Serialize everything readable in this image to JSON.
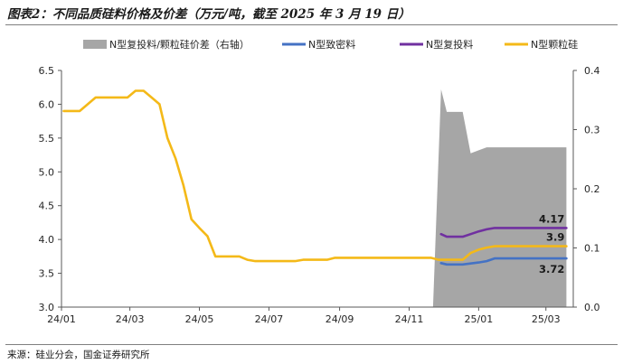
{
  "figure": {
    "title": "图表2：不同品质硅料价格及价差（万元/吨，截至 2025 年 3 月 19 日）",
    "source": "来源：硅业分会，国金证券研究所"
  },
  "chart_data": {
    "type": "line",
    "x_ticks": [
      "24/01",
      "24/03",
      "24/05",
      "24/07",
      "24/09",
      "24/11",
      "25/01",
      "25/03"
    ],
    "y_left": {
      "range": [
        3.0,
        6.5
      ],
      "ticks": [
        "3.0",
        "3.5",
        "4.0",
        "4.5",
        "5.0",
        "5.5",
        "6.0",
        "6.5"
      ]
    },
    "y_right": {
      "range": [
        0.0,
        0.4
      ],
      "ticks": [
        "0.0",
        "0.1",
        "0.2",
        "0.3",
        "0.4"
      ]
    },
    "legend_position": "top",
    "grid": false,
    "series": [
      {
        "name": "N型复投料/颗粒硅价差（右轴）",
        "type": "area",
        "axis": "right",
        "color": "#a6a6a6",
        "points": [
          [
            "2024-11-22",
            0.0
          ],
          [
            "2024-11-29",
            0.368
          ],
          [
            "2024-12-04",
            0.33
          ],
          [
            "2024-12-11",
            0.33
          ],
          [
            "2024-12-18",
            0.33
          ],
          [
            "2024-12-25",
            0.26
          ],
          [
            "2025-01-01",
            0.265
          ],
          [
            "2025-01-08",
            0.27
          ],
          [
            "2025-01-15",
            0.27
          ],
          [
            "2025-02-05",
            0.27
          ],
          [
            "2025-02-26",
            0.27
          ],
          [
            "2025-03-19",
            0.27
          ]
        ]
      },
      {
        "name": "N型致密料",
        "type": "line",
        "axis": "left",
        "color": "#4472c4",
        "points": [
          [
            "2024-11-29",
            3.65
          ],
          [
            "2024-12-04",
            3.63
          ],
          [
            "2024-12-18",
            3.63
          ],
          [
            "2025-01-01",
            3.66
          ],
          [
            "2025-01-08",
            3.68
          ],
          [
            "2025-01-15",
            3.72
          ],
          [
            "2025-02-05",
            3.72
          ],
          [
            "2025-02-26",
            3.72
          ],
          [
            "2025-03-19",
            3.72
          ]
        ],
        "end_label": "3.72"
      },
      {
        "name": "N型复投料",
        "type": "line",
        "axis": "left",
        "color": "#7030a0",
        "points": [
          [
            "2024-11-29",
            4.08
          ],
          [
            "2024-12-04",
            4.04
          ],
          [
            "2024-12-18",
            4.04
          ],
          [
            "2024-12-25",
            4.08
          ],
          [
            "2025-01-01",
            4.12
          ],
          [
            "2025-01-08",
            4.15
          ],
          [
            "2025-01-15",
            4.17
          ],
          [
            "2025-02-05",
            4.17
          ],
          [
            "2025-02-26",
            4.17
          ],
          [
            "2025-03-19",
            4.17
          ]
        ],
        "end_label": "4.17"
      },
      {
        "name": "N型颗粒硅",
        "type": "line",
        "axis": "left",
        "color": "#f4b918",
        "points": [
          [
            "2024-01-03",
            5.9
          ],
          [
            "2024-01-17",
            5.9
          ],
          [
            "2024-01-31",
            6.1
          ],
          [
            "2024-02-21",
            6.1
          ],
          [
            "2024-02-28",
            6.1
          ],
          [
            "2024-03-06",
            6.2
          ],
          [
            "2024-03-13",
            6.2
          ],
          [
            "2024-03-20",
            6.1
          ],
          [
            "2024-03-27",
            6.0
          ],
          [
            "2024-04-03",
            5.5
          ],
          [
            "2024-04-10",
            5.2
          ],
          [
            "2024-04-17",
            4.8
          ],
          [
            "2024-04-24",
            4.3
          ],
          [
            "2024-05-01",
            4.17
          ],
          [
            "2024-05-08",
            4.05
          ],
          [
            "2024-05-15",
            3.75
          ],
          [
            "2024-05-22",
            3.75
          ],
          [
            "2024-06-05",
            3.75
          ],
          [
            "2024-06-12",
            3.7
          ],
          [
            "2024-06-19",
            3.68
          ],
          [
            "2024-07-10",
            3.68
          ],
          [
            "2024-07-24",
            3.68
          ],
          [
            "2024-07-31",
            3.7
          ],
          [
            "2024-08-14",
            3.7
          ],
          [
            "2024-08-21",
            3.7
          ],
          [
            "2024-08-28",
            3.73
          ],
          [
            "2024-09-11",
            3.73
          ],
          [
            "2024-09-25",
            3.73
          ],
          [
            "2024-10-09",
            3.73
          ],
          [
            "2024-10-23",
            3.73
          ],
          [
            "2024-11-06",
            3.73
          ],
          [
            "2024-11-20",
            3.73
          ],
          [
            "2024-11-27",
            3.7
          ],
          [
            "2024-12-04",
            3.7
          ],
          [
            "2024-12-18",
            3.7
          ],
          [
            "2024-12-25",
            3.8
          ],
          [
            "2025-01-01",
            3.85
          ],
          [
            "2025-01-08",
            3.88
          ],
          [
            "2025-01-15",
            3.9
          ],
          [
            "2025-02-05",
            3.9
          ],
          [
            "2025-02-26",
            3.9
          ],
          [
            "2025-03-19",
            3.9
          ]
        ],
        "end_label": "3.9"
      }
    ]
  }
}
